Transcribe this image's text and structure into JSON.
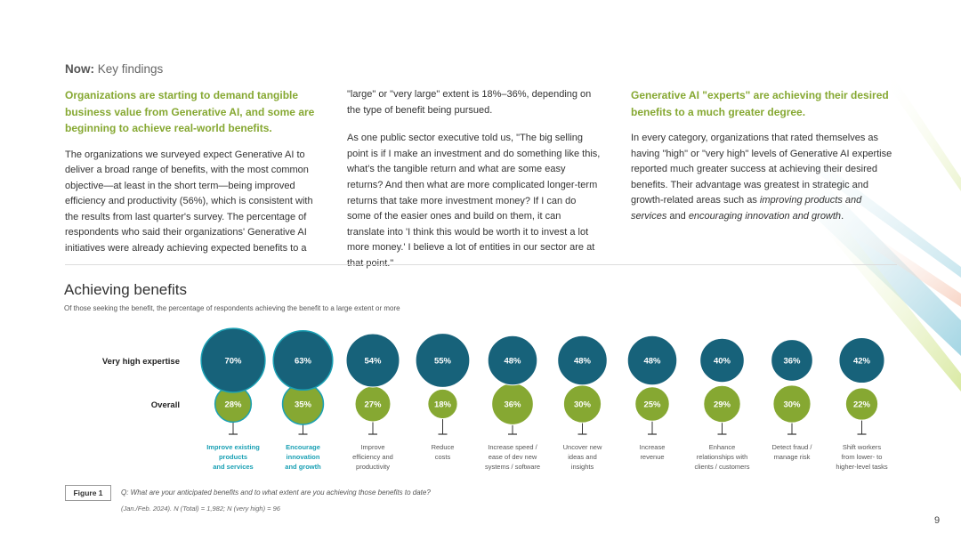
{
  "header": {
    "label_bold": "Now:",
    "label_rest": " Key findings"
  },
  "columns": {
    "col1": {
      "lead": "Organizations are starting to demand tangible business value from Generative AI, and some are beginning to achieve real-world benefits.",
      "body": "The organizations we surveyed expect Generative AI to deliver a broad range of benefits, with the most common objective—at least in the short term—being improved efficiency and productivity (56%), which is consistent with the results from last quarter's survey. The percentage of respondents who said their organizations' Generative AI initiatives were already achieving expected benefits to a"
    },
    "col2": {
      "p1": "\"large\" or \"very large\" extent is 18%–36%, depending on the type of benefit being pursued.",
      "p2": "As one public sector executive told us, \"The big selling point is if I make an investment and do something like this, what's the tangible return and what are some easy returns? And then what are more complicated longer-term returns that take more investment money? If I can do some of the easier ones and build on them, it can translate into 'I think this would be worth it to invest a lot more money.' I believe a lot of entities in our sector are at that point.\""
    },
    "col3": {
      "lead": "Generative AI \"experts\" are achieving their desired benefits to a much greater degree.",
      "body_a": "In every category, organizations that rated themselves as having \"high\" or \"very high\" levels of Generative AI expertise reported much greater success at achieving their desired benefits. Their advantage was greatest in strategic and growth-related areas such as ",
      "body_em1": "improving products and services",
      "body_b": " and ",
      "body_em2": "encouraging innovation and growth",
      "body_c": "."
    }
  },
  "chart_data": {
    "type": "bubble",
    "title": "Achieving benefits",
    "subtitle": "Of those seeking the benefit, the percentage of respondents achieving the benefit to a large extent or more",
    "unit": "%",
    "categories": [
      [
        "Improve existing",
        "products",
        "and services"
      ],
      [
        "Encourage",
        "innovation",
        "and growth"
      ],
      [
        "Improve",
        "efficiency and",
        "productivity"
      ],
      [
        "Reduce",
        "costs"
      ],
      [
        "Increase speed /",
        "ease of dev new",
        "systems / software"
      ],
      [
        "Uncover new",
        "ideas and",
        "insights"
      ],
      [
        "Increase",
        "revenue"
      ],
      [
        "Enhance",
        "relationships with",
        "clients / customers"
      ],
      [
        "Detect fraud /",
        "manage risk"
      ],
      [
        "Shift workers",
        "from lower- to",
        "higher-level tasks"
      ]
    ],
    "highlighted": [
      0,
      1
    ],
    "series": [
      {
        "name": "Very high expertise",
        "values": [
          70,
          63,
          54,
          55,
          48,
          48,
          48,
          40,
          36,
          42
        ],
        "color": "#17627a"
      },
      {
        "name": "Overall",
        "values": [
          28,
          35,
          27,
          18,
          36,
          30,
          25,
          29,
          30,
          22
        ],
        "color": "#86a832"
      }
    ],
    "highlight_color": "#1aa0b4"
  },
  "figure": {
    "label": "Figure 1",
    "question": "Q: What are your anticipated benefits and to what extent are you achieving those benefits to date?",
    "note": "(Jan./Feb. 2024). N (Total) = 1,982; N (very high) = 96"
  },
  "page_number": "9"
}
